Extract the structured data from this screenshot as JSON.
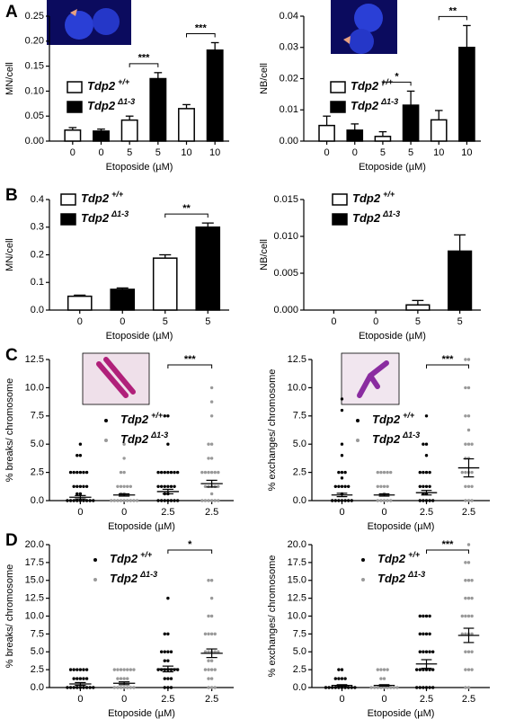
{
  "chart_data": [
    {
      "type": "bar",
      "panel": "A",
      "ylabel": "MN/cell",
      "xlabel": "Etoposide (µM)",
      "categories": [
        "0",
        "0",
        "5",
        "5",
        "10",
        "10"
      ],
      "values": [
        0.022,
        0.02,
        0.042,
        0.125,
        0.065,
        0.182
      ],
      "errors": [
        0.005,
        0.004,
        0.008,
        0.012,
        0.008,
        0.015
      ],
      "colors": [
        "#ffffff",
        "#000000",
        "#ffffff",
        "#000000",
        "#ffffff",
        "#000000"
      ],
      "ylim": [
        0,
        0.25
      ],
      "yticks": [
        {
          "value": 0,
          "label": "0.00"
        },
        0.05,
        {
          "value": 0.1,
          "label": "0.10"
        },
        0.15,
        {
          "value": 0.2,
          "label": "0.20"
        },
        0.25
      ],
      "legend": [
        {
          "name": "Tdp2",
          "sup": "+/+",
          "color": "#ffffff"
        },
        {
          "name": "Tdp2",
          "sup": "Δ1-3",
          "color": "#000000"
        }
      ],
      "sig": [
        {
          "from": 2,
          "to": 3,
          "label": "***"
        },
        {
          "from": 4,
          "to": 5,
          "label": "***"
        }
      ]
    },
    {
      "type": "bar",
      "ylabel": "NB/cell",
      "xlabel": "Etoposide (µM)",
      "categories": [
        "0",
        "0",
        "5",
        "5",
        "10",
        "10"
      ],
      "values": [
        0.005,
        0.0035,
        0.0015,
        0.0115,
        0.0068,
        0.03
      ],
      "errors": [
        0.003,
        0.002,
        0.0015,
        0.0045,
        0.003,
        0.007
      ],
      "colors": [
        "#ffffff",
        "#000000",
        "#ffffff",
        "#000000",
        "#ffffff",
        "#000000"
      ],
      "ylim": [
        0,
        0.04
      ],
      "yticks": [
        {
          "value": 0,
          "label": "0.00"
        },
        0.01,
        0.02,
        0.03,
        0.04
      ],
      "legend": [
        {
          "name": "Tdp2",
          "sup": "+/+",
          "color": "#ffffff"
        },
        {
          "name": "Tdp2",
          "sup": "Δ1-3",
          "color": "#000000"
        }
      ],
      "sig": [
        {
          "from": 2,
          "to": 3,
          "label": "*"
        },
        {
          "from": 4,
          "to": 5,
          "label": "**"
        }
      ]
    },
    {
      "type": "bar",
      "panel": "B",
      "ylabel": "MN/cell",
      "xlabel": "Etoposide (µM)",
      "categories": [
        "0",
        "0",
        "5",
        "5"
      ],
      "values": [
        0.05,
        0.075,
        0.188,
        0.3
      ],
      "errors": [
        0.004,
        0.005,
        0.012,
        0.015
      ],
      "colors": [
        "#ffffff",
        "#000000",
        "#ffffff",
        "#000000"
      ],
      "ylim": [
        0,
        0.4
      ],
      "yticks": [
        {
          "value": 0,
          "label": "0.0"
        },
        0.1,
        0.2,
        0.3,
        0.4
      ],
      "legend": [
        {
          "name": "Tdp2",
          "sup": "+/+",
          "color": "#ffffff"
        },
        {
          "name": "Tdp2",
          "sup": "Δ1-3",
          "color": "#000000"
        }
      ],
      "sig": [
        {
          "from": 2,
          "to": 3,
          "label": "**"
        }
      ]
    },
    {
      "type": "bar",
      "ylabel": "NB/cell",
      "xlabel": "Etoposide (µM)",
      "categories": [
        "0",
        "0",
        "5",
        "5"
      ],
      "values": [
        0,
        0,
        0.0007,
        0.008
      ],
      "errors": [
        0,
        0,
        0.0006,
        0.0022
      ],
      "colors": [
        "#ffffff",
        "#000000",
        "#ffffff",
        "#000000"
      ],
      "ylim": [
        0,
        0.015
      ],
      "yticks": [
        {
          "value": 0,
          "label": "0.000"
        },
        0.005,
        {
          "value": 0.01,
          "label": "0.010"
        },
        0.015
      ],
      "legend": [
        {
          "name": "Tdp2",
          "sup": "+/+",
          "color": "#ffffff"
        },
        {
          "name": "Tdp2",
          "sup": "Δ1-3",
          "color": "#000000"
        }
      ],
      "sig": []
    },
    {
      "type": "dot",
      "panel": "C",
      "ylabel": "% breaks/ chromosome",
      "xlabel": "Etoposide (µM)",
      "categories": [
        "0",
        "0",
        "2.5",
        "2.5"
      ],
      "colors": [
        "#000000",
        "#999999",
        "#000000",
        "#999999"
      ],
      "groups": [
        {
          "values": [
            5,
            4,
            4,
            2.5,
            2.5,
            2.5,
            2.5,
            2.5,
            2.5,
            1.25,
            1.25,
            1.25,
            1.25,
            1.25,
            0.6,
            0.6,
            0,
            0,
            0,
            0,
            0,
            0,
            0,
            0,
            0
          ],
          "mean": 0.3,
          "sem": 0.15
        },
        {
          "values": [
            5,
            3.75,
            2.5,
            2.5,
            1.25,
            1.25,
            1.25,
            1.25,
            1.25,
            0.6,
            0.6,
            0,
            0,
            0,
            0,
            0,
            0,
            0,
            0,
            0
          ],
          "mean": 0.5,
          "sem": 0.1
        },
        {
          "values": [
            7.5,
            7.5,
            5,
            2.5,
            2.5,
            2.5,
            2.5,
            2.5,
            2.5,
            2.5,
            1.25,
            1.25,
            1.25,
            1.25,
            1.25,
            1.25,
            0.6,
            0.6,
            0,
            0,
            0,
            0,
            0,
            0,
            0
          ],
          "mean": 0.8,
          "sem": 0.2
        },
        {
          "values": [
            10,
            8.75,
            7.5,
            5,
            5,
            3.75,
            3.75,
            2.5,
            2.5,
            2.5,
            2.5,
            2.5,
            2.5,
            1.25,
            1.25,
            1.25,
            1.25,
            1.25,
            0.6,
            0,
            0,
            0,
            0,
            0,
            0
          ],
          "mean": 1.5,
          "sem": 0.3
        }
      ],
      "ylim": [
        0,
        12.5
      ],
      "yticks": [
        {
          "value": 0,
          "label": "0.0"
        },
        2.5,
        {
          "value": 5,
          "label": "5.0"
        },
        7.5,
        {
          "value": 10,
          "label": "10.0"
        },
        12.5
      ],
      "legend": [
        {
          "name": "Tdp2",
          "sup": "+/+",
          "color": "#000000"
        },
        {
          "name": "Tdp2",
          "sup": "Δ1-3",
          "color": "#999999"
        }
      ],
      "sig": [
        {
          "from": 2,
          "to": 3,
          "label": "***"
        }
      ]
    },
    {
      "type": "dot",
      "ylabel": "% exchanges/ chromosome",
      "xlabel": "Etoposide (µM)",
      "categories": [
        "0",
        "0",
        "2.5",
        "2.5"
      ],
      "colors": [
        "#000000",
        "#999999",
        "#000000",
        "#999999"
      ],
      "groups": [
        {
          "values": [
            9,
            8,
            5,
            4,
            2.5,
            2.5,
            2.5,
            2,
            1.25,
            1.25,
            1.25,
            1.25,
            1.25,
            0.6,
            0,
            0,
            0,
            0,
            0,
            0,
            0
          ],
          "mean": 0.5,
          "sem": 0.15
        },
        {
          "values": [
            2.5,
            2.5,
            2.5,
            2.5,
            2.5,
            1.25,
            1.25,
            1.25,
            1.25,
            0.6,
            0,
            0,
            0,
            0,
            0
          ],
          "mean": 0.5,
          "sem": 0.1
        },
        {
          "values": [
            7.5,
            5,
            5,
            4,
            2.5,
            2.5,
            2.5,
            2.5,
            1.25,
            1.25,
            1.25,
            1.25,
            0.6,
            0.6,
            0,
            0,
            0,
            0,
            0
          ],
          "mean": 0.7,
          "sem": 0.2
        },
        {
          "values": [
            12.5,
            12.5,
            10,
            10,
            7.5,
            7.5,
            6.25,
            5,
            5,
            5,
            3.75,
            3.75,
            2.5,
            2.5,
            2.5,
            2.5,
            1.25,
            1.25,
            1.25,
            0,
            0,
            0
          ],
          "mean": 2.9,
          "sem": 0.8
        }
      ],
      "ylim": [
        0,
        12.5
      ],
      "yticks": [
        {
          "value": 0,
          "label": "0.0"
        },
        2.5,
        {
          "value": 5,
          "label": "5.0"
        },
        7.5,
        {
          "value": 10,
          "label": "10.0"
        },
        12.5
      ],
      "legend": [
        {
          "name": "Tdp2",
          "sup": "+/+",
          "color": "#000000"
        },
        {
          "name": "Tdp2",
          "sup": "Δ1-3",
          "color": "#999999"
        }
      ],
      "sig": [
        {
          "from": 2,
          "to": 3,
          "label": "***"
        }
      ]
    },
    {
      "type": "dot",
      "panel": "D",
      "ylabel": "% breaks/ chromosome",
      "xlabel": "Etoposide (µM)",
      "categories": [
        "0",
        "0",
        "2.5",
        "2.5"
      ],
      "colors": [
        "#000000",
        "#999999",
        "#000000",
        "#999999"
      ],
      "groups": [
        {
          "values": [
            2.5,
            2.5,
            2.5,
            2.5,
            2.5,
            2.5,
            1.25,
            1.25,
            1.25,
            1.25,
            1.25,
            0,
            0,
            0,
            0,
            0,
            0,
            0,
            0,
            0
          ],
          "mean": 0.5,
          "sem": 0.2
        },
        {
          "values": [
            2.5,
            2.5,
            2.5,
            2.5,
            2.5,
            2.5,
            2.5,
            1.25,
            1.25,
            1.25,
            1.25,
            0,
            0,
            0,
            0,
            0,
            0,
            0
          ],
          "mean": 0.6,
          "sem": 0.2
        },
        {
          "values": [
            12.5,
            7.5,
            7.5,
            5,
            5,
            5,
            5,
            3.75,
            3.75,
            2.5,
            2.5,
            2.5,
            2.5,
            2.5,
            2.5,
            2.5,
            1.25,
            1.25,
            1.25,
            0,
            0,
            0
          ],
          "mean": 2.6,
          "sem": 0.4
        },
        {
          "values": [
            15,
            15,
            12.5,
            10,
            10,
            7.5,
            7.5,
            7.5,
            7.5,
            5,
            5,
            5,
            5,
            5,
            3.75,
            3.75,
            2.5,
            2.5,
            2.5,
            2.5,
            1.25,
            1.25,
            0,
            0,
            0
          ],
          "mean": 4.8,
          "sem": 0.6
        }
      ],
      "ylim": [
        0,
        20
      ],
      "yticks": [
        {
          "value": 0,
          "label": "0.0"
        },
        2.5,
        {
          "value": 5,
          "label": "5.0"
        },
        7.5,
        {
          "value": 10,
          "label": "10.0"
        },
        12.5,
        {
          "value": 15,
          "label": "15.0"
        },
        17.5,
        {
          "value": 20,
          "label": "20.0"
        }
      ],
      "legend": [
        {
          "name": "Tdp2",
          "sup": "+/+",
          "color": "#000000"
        },
        {
          "name": "Tdp2",
          "sup": "Δ1-3",
          "color": "#999999"
        }
      ],
      "sig": [
        {
          "from": 2,
          "to": 3,
          "label": "*"
        }
      ]
    },
    {
      "type": "dot",
      "ylabel": "% exchanges/ chromosome",
      "xlabel": "Etoposide (µM)",
      "categories": [
        "0",
        "0",
        "2.5",
        "2.5"
      ],
      "colors": [
        "#000000",
        "#999999",
        "#000000",
        "#999999"
      ],
      "groups": [
        {
          "values": [
            2.5,
            2.5,
            1.25,
            1.25,
            1.25,
            1.25,
            0,
            0,
            0,
            0,
            0,
            0,
            0,
            0,
            0,
            0
          ],
          "mean": 0.3,
          "sem": 0.1
        },
        {
          "values": [
            2.5,
            2.5,
            2.5,
            2.5,
            1.25,
            1.25,
            0,
            0,
            0,
            0,
            0,
            0,
            0,
            0,
            0
          ],
          "mean": 0.3,
          "sem": 0.1
        },
        {
          "values": [
            10,
            10,
            10,
            10,
            7.5,
            7.5,
            7.5,
            7.5,
            5,
            5,
            5,
            5,
            5,
            2.5,
            2.5,
            2.5,
            2.5,
            2.5,
            2.5,
            0,
            0,
            0,
            0,
            0,
            0
          ],
          "mean": 3.3,
          "sem": 0.6
        },
        {
          "values": [
            20,
            17.5,
            17.5,
            15,
            15,
            15,
            12.5,
            12.5,
            12.5,
            10,
            10,
            10,
            10,
            7.5,
            7.5,
            7.5,
            7.5,
            5,
            5,
            5,
            2.5,
            2.5,
            2.5,
            0,
            0
          ],
          "mean": 7.3,
          "sem": 1.0
        }
      ],
      "ylim": [
        0,
        20
      ],
      "yticks": [
        {
          "value": 0,
          "label": "0.0"
        },
        2.5,
        {
          "value": 5,
          "label": "5.0"
        },
        7.5,
        {
          "value": 10,
          "label": "10.0"
        },
        12.5,
        {
          "value": 15,
          "label": "15.0"
        },
        17.5,
        {
          "value": 20,
          "label": "20.0"
        }
      ],
      "legend": [
        {
          "name": "Tdp2",
          "sup": "+/+",
          "color": "#000000"
        },
        {
          "name": "Tdp2",
          "sup": "Δ1-3",
          "color": "#999999"
        }
      ],
      "sig": [
        {
          "from": 2,
          "to": 3,
          "label": "***"
        }
      ]
    }
  ]
}
